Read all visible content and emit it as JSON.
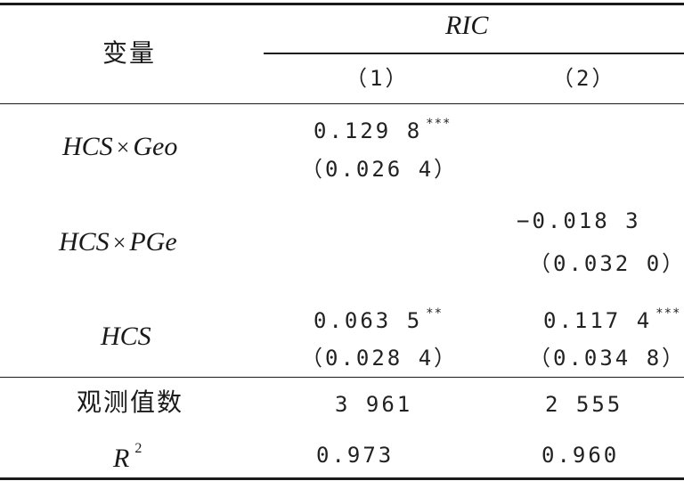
{
  "header": {
    "variable_label": "变量",
    "dependent_var": "RIC",
    "col1": "（1）",
    "col2": "（2）"
  },
  "rows": [
    {
      "name_left": "HCS",
      "name_op": "×",
      "name_right": "Geo",
      "col1_coef": "0.129 8",
      "col1_stars": "***",
      "col1_se": "（0.026 4）",
      "col2_coef": "",
      "col2_stars": "",
      "col2_se": ""
    },
    {
      "name_left": "HCS",
      "name_op": "×",
      "name_right": "PGe",
      "col1_coef": "",
      "col1_stars": "",
      "col1_se": "",
      "col2_coef": "−0.018 3",
      "col2_stars": "",
      "col2_se": "（0.032 0）"
    },
    {
      "name": "HCS",
      "col1_coef": "0.063 5",
      "col1_stars": "**",
      "col1_se": "（0.028 4）",
      "col2_coef": "0.117 4",
      "col2_stars": "***",
      "col2_se": "（0.034 8）"
    }
  ],
  "footer": {
    "obs_label": "观测值数",
    "obs_col1": "3 961",
    "obs_col2": "2 555",
    "r2_label": "R",
    "r2_sup": "2",
    "r2_col1": "0.973",
    "r2_col2": "0.960"
  }
}
